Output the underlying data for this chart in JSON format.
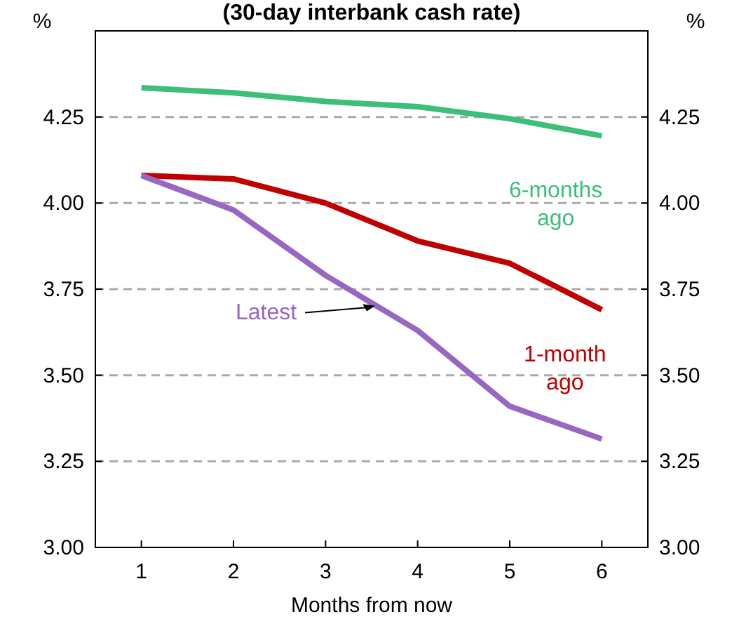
{
  "chart_data": {
    "type": "line",
    "title": "(30-day interbank cash rate)",
    "xlabel": "Months from now",
    "ylabel": "%",
    "y2label": "%",
    "categories": [
      "1",
      "2",
      "3",
      "4",
      "5",
      "6"
    ],
    "series": [
      {
        "name": "6-months ago",
        "color": "#3cbf78",
        "values": [
          4.335,
          4.32,
          4.295,
          4.28,
          4.245,
          4.195
        ]
      },
      {
        "name": "1-month ago",
        "color": "#c00000",
        "values": [
          4.08,
          4.07,
          4.0,
          3.89,
          3.825,
          3.69
        ]
      },
      {
        "name": "Latest",
        "color": "#9966c2",
        "values": [
          4.08,
          3.98,
          3.79,
          3.63,
          3.41,
          3.315
        ]
      }
    ],
    "ylim": [
      3,
      4.5
    ],
    "yticks": [
      {
        "value": 3,
        "label": "3.00"
      },
      {
        "value": 3.25,
        "label": "3.25"
      },
      {
        "value": 3.5,
        "label": "3.50"
      },
      {
        "value": 3.75,
        "label": "3.75"
      },
      {
        "value": 4,
        "label": "4.00"
      },
      {
        "value": 4.25,
        "label": "4.25"
      }
    ],
    "y2lim": [
      3,
      4.5
    ],
    "y2ticks": [
      {
        "value": 3,
        "label": "3.00"
      },
      {
        "value": 3.25,
        "label": "3.25"
      },
      {
        "value": 3.5,
        "label": "3.50"
      },
      {
        "value": 3.75,
        "label": "3.75"
      },
      {
        "value": 4,
        "label": "4.00"
      },
      {
        "value": 4.25,
        "label": "4.25"
      }
    ],
    "grid": "y",
    "marker": "none",
    "line_style": "solid"
  }
}
